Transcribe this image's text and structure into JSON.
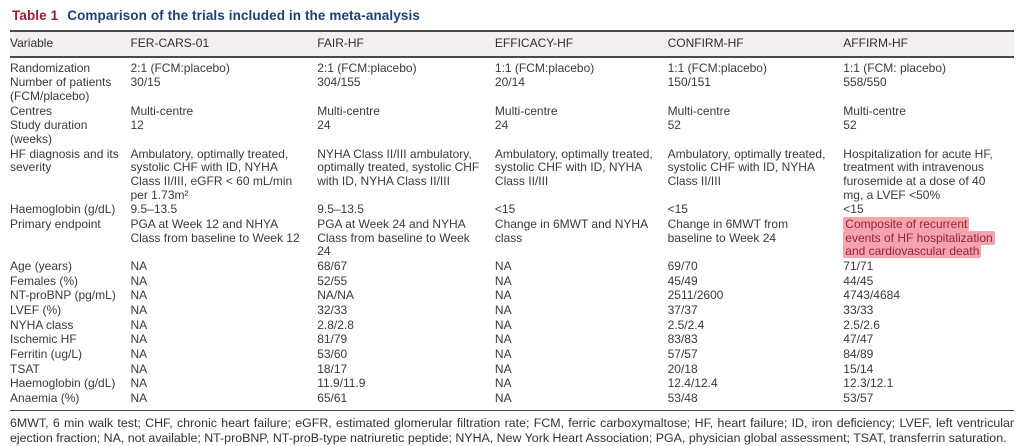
{
  "table": {
    "label": "Table 1",
    "title": "Comparison of the trials included in the meta-analysis",
    "columns": [
      "Variable",
      "FER-CARS-01",
      "FAIR-HF",
      "EFFICACY-HF",
      "CONFIRM-HF",
      "AFFIRM-HF"
    ],
    "rows": [
      {
        "variable": "Randomization",
        "values": [
          "2:1 (FCM:placebo)",
          "2:1 (FCM:placebo)",
          "1:1 (FCM:placebo)",
          "1:1 (FCM:placebo)",
          "1:1 (FCM: placebo)"
        ]
      },
      {
        "variable": "Number of patients (FCM/placebo)",
        "values": [
          "30/15",
          "304/155",
          "20/14",
          "150/151",
          "558/550"
        ]
      },
      {
        "variable": "Centres",
        "values": [
          "Multi-centre",
          "Multi-centre",
          "Multi-centre",
          "Multi-centre",
          "Multi-centre"
        ]
      },
      {
        "variable": "Study duration (weeks)",
        "values": [
          "12",
          "24",
          "24",
          "52",
          "52"
        ]
      },
      {
        "variable": "HF diagnosis and its severity",
        "values": [
          "Ambulatory, optimally treated, systolic CHF with ID, NYHA Class II/III, eGFR < 60 mL/min per 1.73m²",
          "NYHA Class II/III ambulatory, optimally treated, systolic CHF with ID, NYHA Class II/III",
          "Ambulatory, optimally treated, systolic CHF with ID, NYHA Class II/III",
          "Ambulatory, optimally treated, systolic CHF with ID, NYHA Class II/III",
          "Hospitalization for acute HF, treatment with intravenous furosemide at a dose of 40 mg, a LVEF <50%"
        ]
      },
      {
        "variable": "Haemoglobin (g/dL)",
        "values": [
          "9.5–13.5",
          "9.5–13.5",
          "<15",
          "<15",
          "<15"
        ]
      },
      {
        "variable": "Primary endpoint",
        "values": [
          "PGA at Week 12 and NHYA Class from baseline to Week 12",
          "PGA at Week 24 and NYHA Class from baseline to Week 24",
          "Change in 6MWT and NYHA class",
          "Change in 6MWT from baseline to Week 24",
          "Composite of recurrent events of HF hospitalization and cardiovascular death"
        ],
        "highlight_col": 4
      },
      {
        "variable": "Age (years)",
        "values": [
          "NA",
          "68/67",
          "NA",
          "69/70",
          "71/71"
        ]
      },
      {
        "variable": "Females (%)",
        "values": [
          "NA",
          "52/55",
          "NA",
          "45/49",
          "44/45"
        ]
      },
      {
        "variable": "NT-proBNP (pg/mL)",
        "values": [
          "NA",
          "NA/NA",
          "NA",
          "2511/2600",
          "4743/4684"
        ]
      },
      {
        "variable": "LVEF (%)",
        "values": [
          "NA",
          "32/33",
          "NA",
          "37/37",
          "33/33"
        ]
      },
      {
        "variable": "NYHA class",
        "values": [
          "NA",
          "2.8/2.8",
          "NA",
          "2.5/2.4",
          "2.5/2.6"
        ]
      },
      {
        "variable": "Ischemic HF",
        "values": [
          "NA",
          "81/79",
          "NA",
          "83/83",
          "47/47"
        ]
      },
      {
        "variable": "Ferritin (ug/L)",
        "values": [
          "NA",
          "53/60",
          "NA",
          "57/57",
          "84/89"
        ]
      },
      {
        "variable": "TSAT",
        "values": [
          "NA",
          "18/17",
          "NA",
          "20/18",
          "15/14"
        ]
      },
      {
        "variable": "Haemoglobin (g/dL)",
        "values": [
          "NA",
          "11.9/11.9",
          "NA",
          "12.4/12.4",
          "12.3/12.1"
        ]
      },
      {
        "variable": "Anaemia (%)",
        "values": [
          "NA",
          "65/61",
          "NA",
          "53/48",
          "53/57"
        ]
      }
    ],
    "footnote": "6MWT, 6 min walk test; CHF, chronic heart failure; eGFR, estimated glomerular filtration rate; FCM, ferric carboxymaltose; HF, heart failure; ID, iron deficiency; LVEF, left ventricular ejection fraction; NA, not available; NT-proBNP, NT-proB-type natriuretic peptide; NYHA, New York Heart Association; PGA, physician global assessment; TSAT, transferrin saturation.",
    "colors": {
      "label": "#9e1b30",
      "title": "#1e4079",
      "header_bg": "#f2eef2",
      "text": "#3a3a3a",
      "highlight_bg": "#f5a3ad",
      "highlight_text": "#8f2637",
      "rule": "#4a4a4a"
    }
  }
}
